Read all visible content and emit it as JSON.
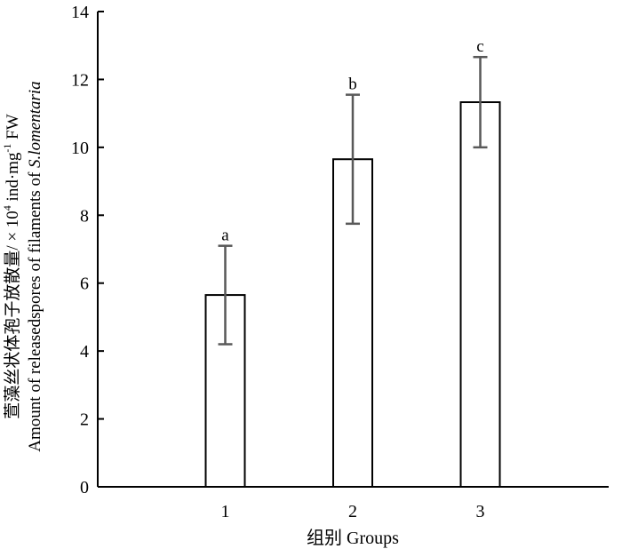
{
  "chart_data": {
    "type": "bar",
    "xlabel": "组别 Groups",
    "ylabel": {
      "line1": "萱藻丝状体孢子放散量/ × 10",
      "line1_sup": "4",
      "line1_mid": " ind·mg",
      "line1_sup2": "-1",
      "line1_end": " FW",
      "line2_prefix": "Amount of releasedspores of filaments of ",
      "line2_italic": "S.lomentaria"
    },
    "categories": [
      "1",
      "2",
      "3"
    ],
    "values": [
      5.65,
      9.65,
      11.33
    ],
    "errors": [
      1.45,
      1.9,
      1.33
    ],
    "significance": [
      "a",
      "b",
      "c"
    ],
    "ylim": [
      0,
      14
    ],
    "yticks": [
      "0",
      "2",
      "4",
      "6",
      "8",
      "10",
      "12",
      "14"
    ],
    "grid": false,
    "legend": "none"
  }
}
